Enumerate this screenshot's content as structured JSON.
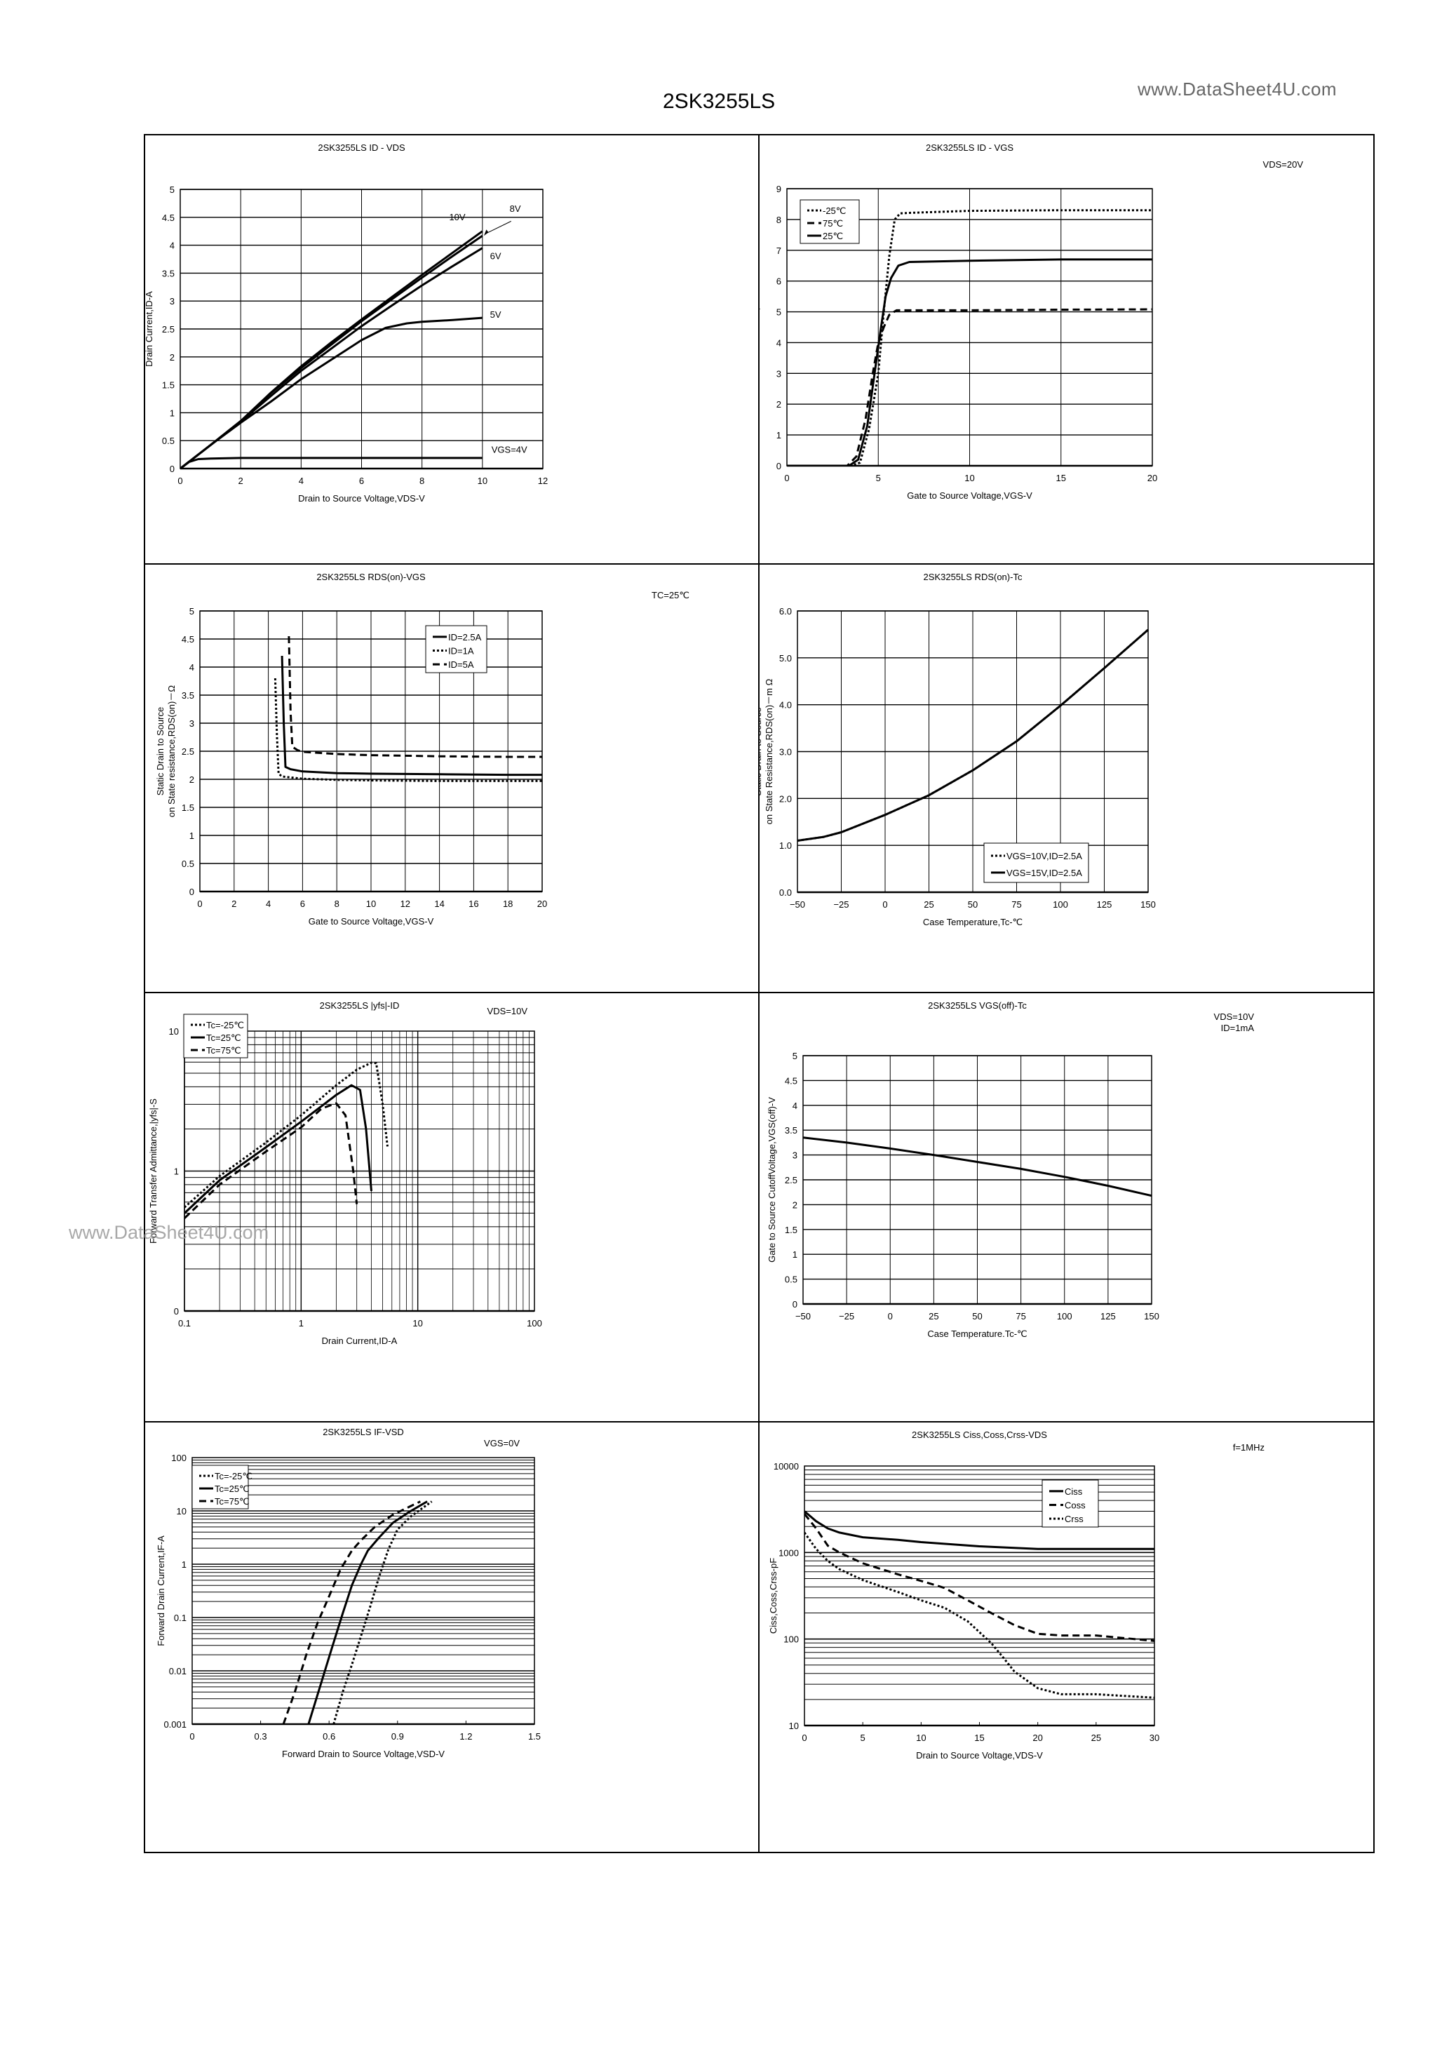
{
  "page": {
    "title": "2SK3255LS",
    "site_mark": "www.DataSheet4U.com",
    "watermark": "www.DataSheet4U.com"
  },
  "chart_data": [
    {
      "id": "id_vds",
      "type": "line",
      "title": "2SK3255LS  ID - VDS",
      "xlabel": "Drain to Source Voltage,VDS-V",
      "ylabel": "Drain Current,ID-A",
      "xlim": [
        0,
        12
      ],
      "ylim": [
        0,
        5
      ],
      "xscale": "linear",
      "yscale": "linear",
      "xticks": [
        "0",
        "2",
        "4",
        "6",
        "8",
        "10",
        "12"
      ],
      "yticks": [
        "0",
        "0.5",
        "1",
        "1.5",
        "2",
        "2.5",
        "3",
        "3.5",
        "4",
        "4.5",
        "5"
      ],
      "grid": true,
      "condition": "",
      "series": [
        {
          "name": "VGS=4V",
          "style": "solid",
          "x": [
            0,
            0.3,
            0.6,
            1,
            2,
            4,
            6,
            8,
            10
          ],
          "y": [
            0,
            0.12,
            0.17,
            0.18,
            0.19,
            0.19,
            0.19,
            0.19,
            0.19
          ]
        },
        {
          "name": "5V",
          "style": "solid",
          "x": [
            0,
            1,
            2,
            3,
            4,
            5,
            6,
            6.8,
            7.5,
            8,
            9,
            10
          ],
          "y": [
            0,
            0.42,
            0.82,
            1.2,
            1.6,
            1.95,
            2.3,
            2.52,
            2.6,
            2.63,
            2.66,
            2.7
          ]
        },
        {
          "name": "6V",
          "style": "solid",
          "x": [
            0,
            1,
            2,
            3,
            4,
            5,
            6,
            7,
            8,
            9,
            10
          ],
          "y": [
            0,
            0.42,
            0.84,
            1.3,
            1.75,
            2.15,
            2.55,
            2.92,
            3.28,
            3.62,
            3.95
          ]
        },
        {
          "name": "8V",
          "style": "solid",
          "x": [
            0,
            1,
            2,
            3,
            4,
            5,
            6,
            7,
            8,
            9,
            10
          ],
          "y": [
            0,
            0.42,
            0.85,
            1.35,
            1.8,
            2.22,
            2.64,
            3.03,
            3.42,
            3.8,
            4.17
          ]
        },
        {
          "name": "10V",
          "style": "solid",
          "x": [
            0,
            1,
            2,
            3,
            4,
            5,
            6,
            7,
            8,
            9,
            10
          ],
          "y": [
            0,
            0.42,
            0.85,
            1.36,
            1.83,
            2.26,
            2.67,
            3.07,
            3.47,
            3.86,
            4.25
          ]
        }
      ],
      "annotations": [
        "10V",
        "8V",
        "6V",
        "5V",
        "VGS=4V"
      ]
    },
    {
      "id": "id_vgs",
      "type": "line",
      "title": "2SK3255LS  ID - VGS",
      "xlabel": "Gate to Source Voltage,VGS-V",
      "ylabel": "Drain Current,ID-A",
      "xlim": [
        0,
        20
      ],
      "ylim": [
        0,
        9
      ],
      "xscale": "linear",
      "yscale": "linear",
      "xticks": [
        "0",
        "5",
        "10",
        "15",
        "20"
      ],
      "yticks": [
        "0",
        "1",
        "2",
        "3",
        "4",
        "5",
        "6",
        "7",
        "8",
        "9"
      ],
      "grid": true,
      "condition": "VDS=20V",
      "legend_position": "upper-left",
      "series": [
        {
          "name": "-25℃",
          "style": "dotted",
          "x": [
            0,
            3.5,
            4,
            4.5,
            5,
            5.3,
            5.6,
            5.9,
            6.2,
            7,
            10,
            15,
            20
          ],
          "y": [
            0,
            0,
            0.1,
            1.2,
            3.0,
            5.0,
            6.8,
            8.0,
            8.2,
            8.22,
            8.28,
            8.3,
            8.3
          ]
        },
        {
          "name": "75℃",
          "style": "dashed",
          "x": [
            0,
            3.3,
            3.8,
            4.3,
            4.7,
            5,
            5.3,
            5.6,
            6,
            7,
            10,
            15,
            20
          ],
          "y": [
            0,
            0,
            0.3,
            1.5,
            3.0,
            4.0,
            4.5,
            4.9,
            5.05,
            5.05,
            5.05,
            5.07,
            5.08
          ]
        },
        {
          "name": "25℃",
          "style": "solid",
          "x": [
            0,
            3.4,
            3.9,
            4.4,
            4.8,
            5.1,
            5.4,
            5.7,
            6.1,
            6.7,
            10,
            15,
            20
          ],
          "y": [
            0,
            0,
            0.2,
            1.3,
            3.0,
            4.3,
            5.5,
            6.1,
            6.5,
            6.62,
            6.66,
            6.7,
            6.7
          ]
        }
      ]
    },
    {
      "id": "rds_vgs",
      "type": "line",
      "title": "2SK3255LS  RDS(on)-VGS",
      "xlabel": "Gate to Source Voltage,VGS-V",
      "ylabel": "Static Drain to Source\non State resistance,RDS(on)-Ω",
      "ylabel_lines": [
        "Static Drain to Source",
        "on State resistance,RDS(on)－Ω"
      ],
      "xlim": [
        0,
        20
      ],
      "ylim": [
        0,
        5
      ],
      "xscale": "linear",
      "yscale": "linear",
      "xticks": [
        "0",
        "2",
        "4",
        "6",
        "8",
        "10",
        "12",
        "14",
        "16",
        "18",
        "20"
      ],
      "yticks": [
        "0",
        "0.5",
        "1",
        "1.5",
        "2",
        "2.5",
        "3",
        "3.5",
        "4",
        "4.5",
        "5"
      ],
      "grid": true,
      "condition": "TC=25℃",
      "legend_position": "upper-right",
      "series": [
        {
          "name": "ID=2.5A",
          "style": "solid",
          "x": [
            4.8,
            4.9,
            5.0,
            5.3,
            6,
            8,
            10,
            14,
            18,
            20
          ],
          "y": [
            4.2,
            3.0,
            2.22,
            2.18,
            2.14,
            2.11,
            2.1,
            2.09,
            2.08,
            2.08
          ]
        },
        {
          "name": "ID=1A",
          "style": "dotted",
          "x": [
            4.4,
            4.5,
            4.6,
            4.8,
            6,
            8,
            10,
            14,
            18,
            20
          ],
          "y": [
            3.8,
            2.8,
            2.1,
            2.05,
            2.01,
            1.99,
            1.98,
            1.97,
            1.97,
            1.97
          ]
        },
        {
          "name": "ID=5A",
          "style": "dashed",
          "x": [
            5.2,
            5.3,
            5.4,
            5.7,
            6,
            8,
            10,
            14,
            18,
            20
          ],
          "y": [
            4.55,
            3.2,
            2.58,
            2.52,
            2.49,
            2.45,
            2.43,
            2.41,
            2.4,
            2.4
          ]
        }
      ]
    },
    {
      "id": "rds_tc",
      "type": "line",
      "title": "2SK3255LS RDS(on)-Tc",
      "xlabel": "Case Temperature,Tc-℃",
      "ylabel": "Static Drain to Source\non State Resistance,RDS(on)-mΩ",
      "ylabel_lines": [
        "Static Drain to Source",
        "on State Resistance,RDS(on)－m Ω"
      ],
      "xlim": [
        -50,
        150
      ],
      "ylim": [
        0,
        6
      ],
      "xscale": "linear",
      "yscale": "linear",
      "xticks": [
        "-50",
        "-25",
        "0",
        "25",
        "50",
        "75",
        "100",
        "125",
        "150"
      ],
      "yticks": [
        "0.0",
        "1.0",
        "2.0",
        "3.0",
        "4.0",
        "5.0",
        "6.0"
      ],
      "grid": true,
      "condition": "",
      "legend_position": "lower-right",
      "series": [
        {
          "name": "VGS=10V,ID=2.5A",
          "style": "dotted",
          "x": [
            -50,
            -35,
            -25,
            0,
            25,
            50,
            75,
            100,
            125,
            150
          ],
          "y": [
            1.1,
            1.18,
            1.28,
            1.65,
            2.07,
            2.6,
            3.22,
            3.98,
            4.78,
            5.6
          ]
        },
        {
          "name": "VGS=15V,ID=2.5A",
          "style": "solid",
          "x": [
            -50,
            -35,
            -25,
            0,
            25,
            50,
            75,
            100,
            125,
            150
          ],
          "y": [
            1.1,
            1.18,
            1.28,
            1.65,
            2.07,
            2.6,
            3.22,
            3.98,
            4.78,
            5.6
          ]
        }
      ]
    },
    {
      "id": "yfs_id",
      "type": "line",
      "title": "2SK3255LS  |yfs|-ID",
      "xlabel": "Drain Current,ID-A",
      "ylabel": "Forward Transfer Admittance,|yfs|-S",
      "xlim": [
        0.1,
        100
      ],
      "ylim": [
        0.1,
        10
      ],
      "xscale": "log",
      "yscale": "log",
      "xticks": [
        "0.1",
        "1",
        "10",
        "100"
      ],
      "yticks": [
        "0",
        "1",
        "10"
      ],
      "grid": true,
      "condition": "VDS=10V",
      "legend_position": "upper-left",
      "series": [
        {
          "name": "Tc=-25℃",
          "style": "dotted",
          "x": [
            0.1,
            0.2,
            0.5,
            1,
            2,
            3,
            4,
            4.4,
            5,
            5.5
          ],
          "y": [
            0.55,
            0.92,
            1.6,
            2.5,
            4.1,
            5.3,
            5.95,
            5.9,
            3.0,
            1.5
          ]
        },
        {
          "name": "Tc=25℃",
          "style": "solid",
          "x": [
            0.1,
            0.2,
            0.5,
            1,
            2,
            2.7,
            3.2,
            3.6,
            4.0
          ],
          "y": [
            0.5,
            0.86,
            1.48,
            2.25,
            3.5,
            4.1,
            3.8,
            2.0,
            0.72
          ]
        },
        {
          "name": "Tc=75℃",
          "style": "dashed",
          "x": [
            0.1,
            0.2,
            0.5,
            1,
            1.5,
            2.0,
            2.4,
            2.8,
            3.0
          ],
          "y": [
            0.46,
            0.8,
            1.38,
            2.05,
            2.8,
            3.05,
            2.5,
            1.0,
            0.58
          ]
        }
      ]
    },
    {
      "id": "vgsoff_tc",
      "type": "line",
      "title": "2SK3255LS  VGS(off)-Tc",
      "xlabel": "Case Temperature.Tc-℃",
      "ylabel": "Gate to Source CutoffVoltage,VGS(off)-V",
      "xlim": [
        -50,
        150
      ],
      "ylim": [
        0,
        5
      ],
      "xscale": "linear",
      "yscale": "linear",
      "xticks": [
        "-50",
        "-25",
        "0",
        "25",
        "50",
        "75",
        "100",
        "125",
        "150"
      ],
      "yticks": [
        "0",
        "0.5",
        "1",
        "1.5",
        "2",
        "2.5",
        "3",
        "3.5",
        "4",
        "4.5",
        "5"
      ],
      "grid": true,
      "condition": "VDS=10V\nID=1mA",
      "condition_lines": [
        "VDS=10V",
        "ID=1mA"
      ],
      "series": [
        {
          "name": "VGS(off)",
          "style": "solid",
          "x": [
            -50,
            -25,
            0,
            25,
            50,
            75,
            100,
            125,
            150
          ],
          "y": [
            3.35,
            3.25,
            3.13,
            3.0,
            2.86,
            2.72,
            2.56,
            2.38,
            2.18
          ]
        }
      ]
    },
    {
      "id": "if_vsd",
      "type": "line",
      "title": "2SK3255LS  IF-VSD",
      "xlabel": "Forward Drain to Source Voltage,VSD-V",
      "ylabel": "Forward Drain Current,IF-A",
      "xlim": [
        0,
        1.5
      ],
      "ylim": [
        0.001,
        100
      ],
      "xscale": "linear",
      "yscale": "log",
      "xticks": [
        "0",
        "0.3",
        "0.6",
        "0.9",
        "1.2",
        "1.5"
      ],
      "yticks": [
        "0.001",
        "0.01",
        "0.1",
        "1",
        "10",
        "100"
      ],
      "grid": true,
      "condition": "VGS=0V",
      "legend_position": "upper-left",
      "series": [
        {
          "name": "Tc=-25℃",
          "style": "dotted",
          "x": [
            0.62,
            0.66,
            0.7,
            0.74,
            0.78,
            0.82,
            0.86,
            0.9,
            0.96,
            1.05
          ],
          "y": [
            0.001,
            0.004,
            0.013,
            0.045,
            0.16,
            0.6,
            1.9,
            4.5,
            8.0,
            15
          ]
        },
        {
          "name": "Tc=25℃",
          "style": "solid",
          "x": [
            0.51,
            0.56,
            0.61,
            0.66,
            0.7,
            0.74,
            0.77,
            0.82,
            0.88,
            0.95,
            1.03
          ],
          "y": [
            0.001,
            0.005,
            0.025,
            0.12,
            0.4,
            1.0,
            1.8,
            3.2,
            6.0,
            9.5,
            15
          ]
        },
        {
          "name": "Tc=75℃",
          "style": "dashed",
          "x": [
            0.4,
            0.45,
            0.5,
            0.55,
            0.6,
            0.65,
            0.7,
            0.74,
            0.8,
            0.88,
            1.0
          ],
          "y": [
            0.001,
            0.004,
            0.02,
            0.08,
            0.25,
            0.8,
            1.8,
            2.8,
            5.0,
            8.5,
            15
          ]
        }
      ]
    },
    {
      "id": "cap_vds",
      "type": "line",
      "title": "2SK3255LS Ciss,Coss,Crss-VDS",
      "xlabel": "Drain to Source Voltage,VDS-V",
      "ylabel": "Ciss,Coss,Crss-pF",
      "xlim": [
        0,
        30
      ],
      "ylim": [
        10,
        10000
      ],
      "xscale": "linear",
      "yscale": "log",
      "xticks": [
        "0",
        "5",
        "10",
        "15",
        "20",
        "25",
        "30"
      ],
      "yticks": [
        "10",
        "100",
        "1000",
        "10000"
      ],
      "grid": true,
      "condition": "f=1MHz",
      "legend_position": "upper-right",
      "series": [
        {
          "name": "Ciss",
          "style": "solid",
          "x": [
            0,
            1,
            2,
            3,
            5,
            8,
            10,
            15,
            20,
            25,
            30
          ],
          "y": [
            3000,
            2300,
            1900,
            1700,
            1500,
            1400,
            1320,
            1180,
            1100,
            1100,
            1100
          ]
        },
        {
          "name": "Coss",
          "style": "dashed",
          "x": [
            0,
            1,
            2,
            3,
            5,
            8,
            10,
            12,
            14,
            16,
            18,
            20,
            22,
            25,
            30
          ],
          "y": [
            2800,
            1900,
            1200,
            1000,
            750,
            560,
            470,
            390,
            280,
            200,
            145,
            115,
            110,
            110,
            95
          ]
        },
        {
          "name": "Crss",
          "style": "dotted",
          "x": [
            0,
            1,
            2,
            3,
            5,
            8,
            10,
            12,
            14,
            15,
            16,
            17,
            18,
            20,
            22,
            25,
            30
          ],
          "y": [
            1700,
            1100,
            800,
            640,
            480,
            350,
            280,
            230,
            160,
            120,
            90,
            62,
            42,
            27,
            23,
            23,
            21
          ]
        }
      ]
    }
  ]
}
